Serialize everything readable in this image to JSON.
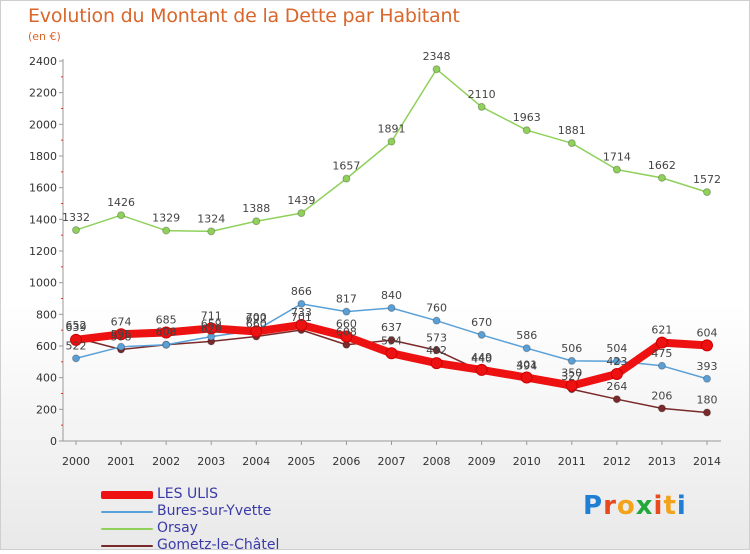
{
  "header": {
    "title": "Evolution du Montant de la Dette par Habitant",
    "unit": "(en €)"
  },
  "logo": {
    "text": "Proxiti",
    "colors": [
      "#1e7fd4",
      "#e8491d",
      "#f2a31b",
      "#24a83c",
      "#e8491d",
      "#f2a31b",
      "#1e7fd4"
    ]
  },
  "chart_data": {
    "type": "line",
    "x": [
      2000,
      2001,
      2002,
      2003,
      2004,
      2005,
      2006,
      2007,
      2008,
      2009,
      2010,
      2011,
      2012,
      2013,
      2014
    ],
    "x_tick_labels": [
      "2000",
      "2001",
      "2002",
      "2003",
      "2004",
      "2005",
      "2006",
      "2007",
      "2008",
      "2009",
      "2010",
      "2011",
      "2012",
      "2013",
      "2014"
    ],
    "ylim": [
      0,
      2400
    ],
    "y_ticks": [
      0,
      200,
      400,
      600,
      800,
      1000,
      1200,
      1400,
      1600,
      1800,
      2000,
      2200,
      2400
    ],
    "grid": false,
    "legend_position": "bottom-left",
    "series": [
      {
        "name": "LES ULIS",
        "color": "#ee1111",
        "values": [
          639,
          674,
          685,
          711,
          692,
          733,
          660,
          554,
          492,
          449,
          401,
          350,
          423,
          621,
          604
        ],
        "labels": [
          "639",
          "674",
          "685",
          "711",
          "692",
          "733",
          "660",
          "554",
          "492",
          "449",
          "401",
          "350",
          "423",
          "621",
          "604"
        ]
      },
      {
        "name": "Bures-sur-Yvette",
        "color": "#5aa0d6",
        "values": [
          522,
          595,
          608,
          659,
          700,
          866,
          817,
          840,
          760,
          670,
          586,
          506,
          504,
          475,
          393
        ],
        "labels": [
          "522",
          "595",
          "608",
          "659",
          "700",
          "866",
          "817",
          "840",
          "760",
          "670",
          "586",
          "506",
          "504",
          "475",
          "393"
        ]
      },
      {
        "name": "Orsay",
        "color": "#8fd15a",
        "values": [
          1332,
          1426,
          1329,
          1324,
          1388,
          1439,
          1657,
          1891,
          2348,
          2110,
          1963,
          1881,
          1714,
          1662,
          1572
        ],
        "labels": [
          "1332",
          "1426",
          "1329",
          "1324",
          "1388",
          "1439",
          "1657",
          "1891",
          "2348",
          "2110",
          "1963",
          "1881",
          "1714",
          "1662",
          "1572"
        ]
      },
      {
        "name": "Gometz-le-Châtel",
        "color": "#7a2a2a",
        "values": [
          652,
          578,
          608,
          629,
          660,
          701,
          608,
          637,
          573,
          440,
          394,
          327,
          264,
          206,
          180
        ],
        "labels": [
          "652",
          "578",
          "608",
          "629",
          "660",
          "701",
          "608",
          "637",
          "573",
          "440",
          "394",
          "327",
          "264",
          "206",
          "180"
        ]
      }
    ]
  }
}
